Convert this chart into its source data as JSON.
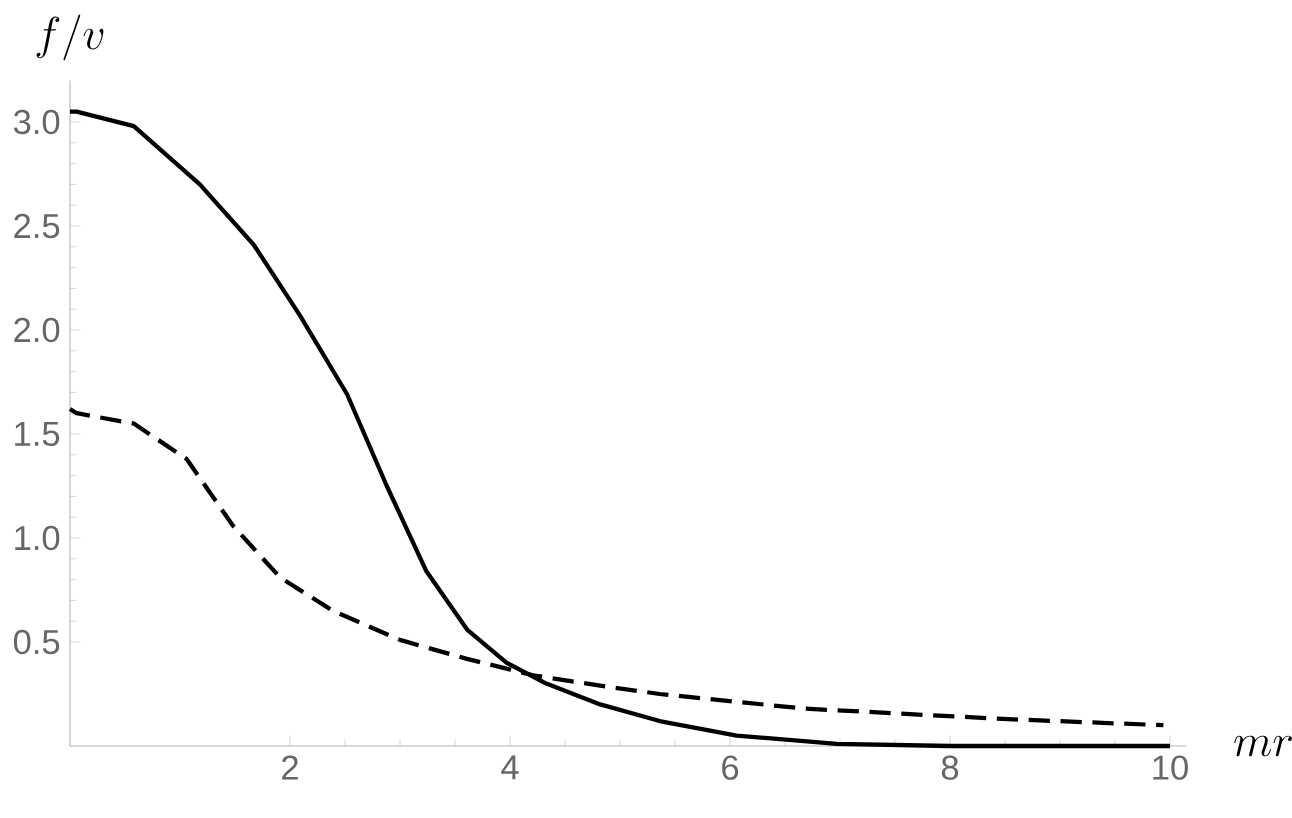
{
  "chart_data": {
    "type": "line",
    "xlabel": "mr",
    "ylabel": "f/v",
    "xlim": [
      0,
      10.15
    ],
    "ylim": [
      0,
      3.2
    ],
    "xticks": [
      2,
      4,
      6,
      8,
      10
    ],
    "yticks": [
      0.5,
      {
        "value": 1,
        "label": "1.0"
      },
      1.5,
      {
        "value": 2,
        "label": "2.0"
      },
      2.5,
      {
        "value": 3,
        "label": "3.0"
      }
    ],
    "grid": false,
    "marker": "none",
    "series": [
      {
        "color": "#000000",
        "line_style": "solid",
        "x": [
          0,
          0.06,
          0.58,
          1.18,
          1.67,
          2.09,
          2.52,
          2.88,
          3.24,
          3.61,
          3.97,
          4.33,
          4.82,
          5.36,
          6.06,
          6.97,
          8.0,
          9.0,
          10.0
        ],
        "values": [
          3.05,
          3.05,
          2.98,
          2.7,
          2.41,
          2.07,
          1.69,
          1.25,
          0.84,
          0.56,
          0.4,
          0.3,
          0.2,
          0.12,
          0.05,
          0.01,
          0.0,
          0.0,
          0.0
        ]
      },
      {
        "color": "#000000",
        "line_style": "dashed",
        "x": [
          0,
          0.06,
          0.58,
          1.06,
          1.48,
          1.91,
          2.39,
          3.0,
          3.6,
          4.21,
          4.82,
          5.36,
          6.67,
          8.48,
          9.94
        ],
        "values": [
          1.62,
          1.6,
          1.55,
          1.38,
          1.06,
          0.81,
          0.65,
          0.51,
          0.42,
          0.34,
          0.29,
          0.25,
          0.18,
          0.13,
          0.1
        ]
      }
    ]
  }
}
